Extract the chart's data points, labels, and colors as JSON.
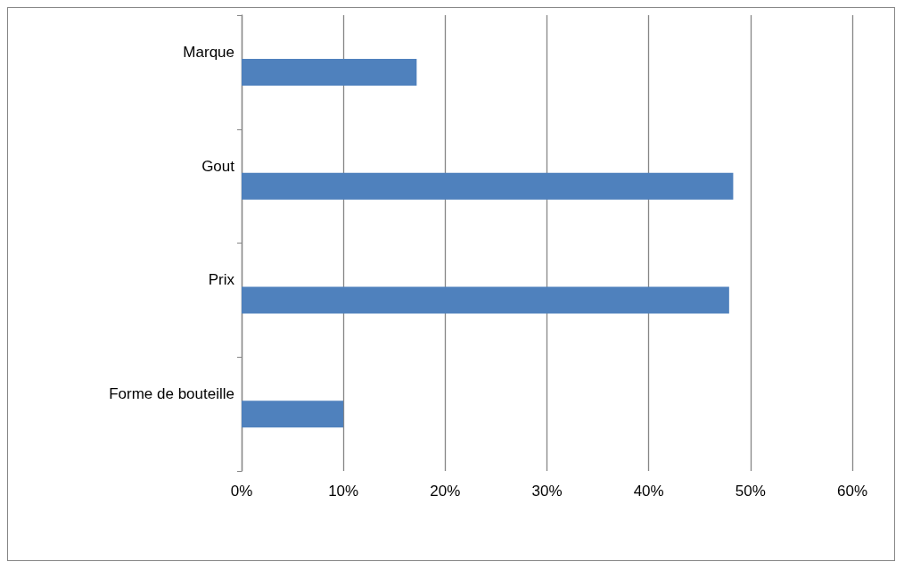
{
  "chart_data": {
    "type": "bar",
    "orientation": "horizontal",
    "categories": [
      "Marque",
      "Gout",
      "Prix",
      "Forme de bouteille"
    ],
    "values": [
      17.2,
      48.3,
      47.9,
      10
    ],
    "color": "#4f81bd",
    "xlim": [
      0,
      60
    ],
    "xticks": [
      {
        "value": 0,
        "label": "0%"
      },
      {
        "value": 10,
        "label": "10%"
      },
      {
        "value": 20,
        "label": "20%"
      },
      {
        "value": 30,
        "label": "30%"
      },
      {
        "value": 40,
        "label": "40%"
      },
      {
        "value": 50,
        "label": "50%"
      },
      {
        "value": 60,
        "label": "60%"
      }
    ],
    "grid": "x"
  }
}
